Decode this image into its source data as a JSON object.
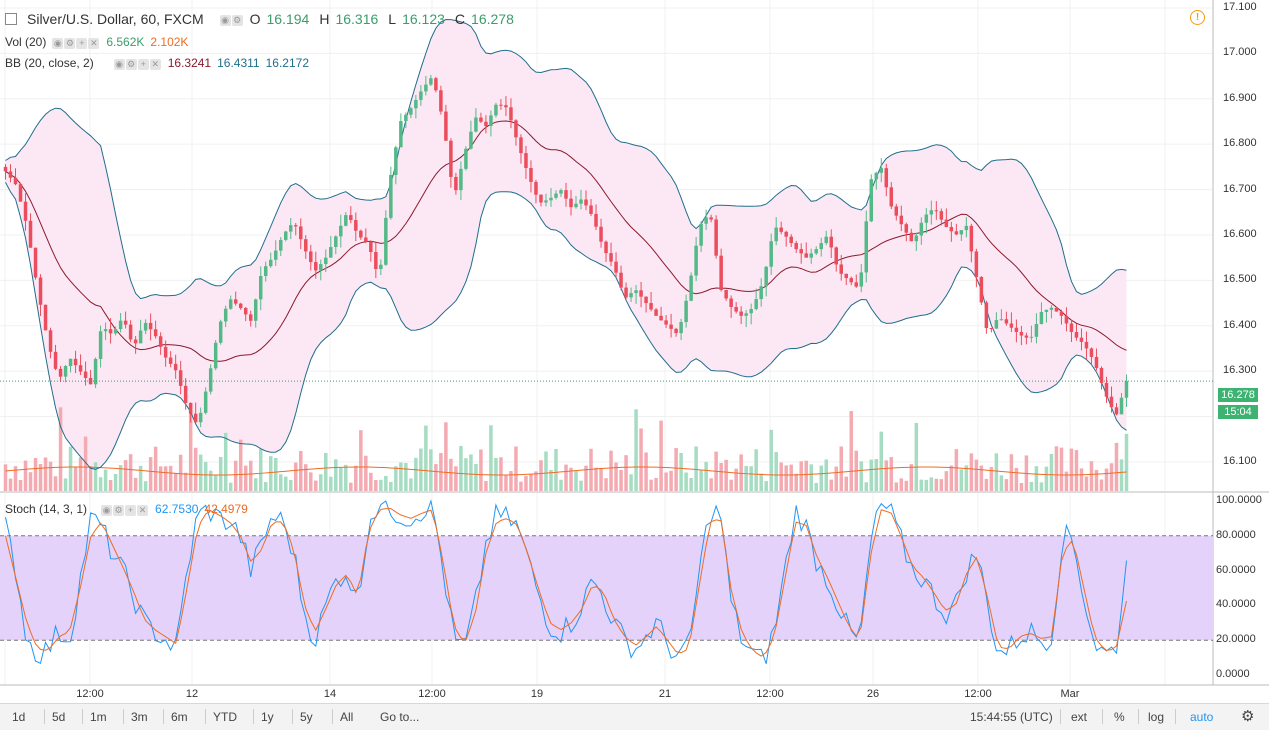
{
  "main_legend": {
    "title": "Silver/U.S. Dollar, 60, FXCM",
    "o_label": "O",
    "o": "16.194",
    "h_label": "H",
    "h": "16.316",
    "l_label": "L",
    "l": "16.123",
    "c_label": "C",
    "c": "16.278"
  },
  "vol_legend": {
    "label": "Vol (20)",
    "v1": "6.562K",
    "v2": "2.102K"
  },
  "bb_legend": {
    "label": "BB (20, close, 2)",
    "mid": "16.3241",
    "upper": "16.4311",
    "lower": "16.2172"
  },
  "stoch_legend": {
    "label": "Stoch (14, 3, 1)",
    "k": "62.7530",
    "d": "42.4979"
  },
  "price_axis": [
    "17.100",
    "17.000",
    "16.900",
    "16.800",
    "16.700",
    "16.600",
    "16.500",
    "16.400",
    "16.300",
    "16.200",
    "16.100"
  ],
  "stoch_axis": [
    "100.0000",
    "80.0000",
    "60.0000",
    "40.0000",
    "20.0000",
    "0.0000"
  ],
  "current_price": "16.278",
  "countdown": "15:04",
  "time_axis": [
    "12:00",
    "12",
    "14",
    "12:00",
    "19",
    "21",
    "12:00",
    "26",
    "12:00",
    "Mar"
  ],
  "bottom_bar": {
    "ranges": [
      "1d",
      "5d",
      "1m",
      "3m",
      "6m",
      "YTD",
      "1y",
      "5y",
      "All"
    ],
    "goto": "Go to...",
    "clock": "15:44:55 (UTC)",
    "ext": "ext",
    "percent": "%",
    "log": "log",
    "auto": "auto"
  },
  "colors": {
    "up": "#53b987",
    "down": "#eb4d5c",
    "bb_band": "#1f6e8c",
    "bb_mid": "#8b1a2b",
    "bb_fill": "#fce8f5",
    "stoch_k": "#2196f3",
    "stoch_d": "#ef6c23",
    "stoch_zone": "#e4d2fa"
  },
  "chart_data": {
    "type": "candlestick",
    "symbol": "Silver/U.S. Dollar",
    "interval": "60",
    "ylim": [
      16.08,
      17.1
    ],
    "close_path": [
      16.74,
      16.71,
      16.62,
      16.48,
      16.36,
      16.28,
      16.33,
      16.3,
      16.27,
      16.4,
      16.38,
      16.42,
      16.35,
      16.41,
      16.38,
      16.33,
      16.3,
      16.22,
      16.18,
      16.28,
      16.4,
      16.46,
      16.44,
      16.41,
      16.52,
      16.55,
      16.6,
      16.63,
      16.57,
      16.52,
      16.55,
      16.6,
      16.65,
      16.6,
      16.58,
      16.5,
      16.72,
      16.85,
      16.88,
      16.92,
      16.95,
      16.85,
      16.68,
      16.78,
      16.86,
      16.84,
      16.89,
      16.88,
      16.8,
      16.73,
      16.67,
      16.68,
      16.7,
      16.66,
      16.68,
      16.64,
      16.57,
      16.53,
      16.46,
      16.48,
      16.45,
      16.42,
      16.4,
      16.38,
      16.48,
      16.62,
      16.65,
      16.48,
      16.44,
      16.42,
      16.44,
      16.5,
      16.62,
      16.6,
      16.57,
      16.55,
      16.57,
      16.6,
      16.52,
      16.5,
      16.48,
      16.72,
      16.75,
      16.66,
      16.62,
      16.58,
      16.64,
      16.66,
      16.62,
      16.6,
      16.62,
      16.5,
      16.38,
      16.42,
      16.4,
      16.38,
      16.37,
      16.43,
      16.44,
      16.42,
      16.38,
      16.36,
      16.32,
      16.25,
      16.2,
      16.278
    ],
    "stoch_k_path": [
      85,
      60,
      20,
      12,
      15,
      25,
      20,
      55,
      90,
      85,
      70,
      60,
      45,
      30,
      25,
      20,
      15,
      60,
      92,
      95,
      90,
      88,
      80,
      60,
      75,
      92,
      88,
      70,
      35,
      20,
      40,
      55,
      60,
      40,
      90,
      98,
      95,
      92,
      90,
      95,
      98,
      60,
      20,
      15,
      40,
      75,
      92,
      90,
      85,
      65,
      45,
      28,
      25,
      30,
      40,
      55,
      45,
      30,
      20,
      15,
      22,
      30,
      18,
      10,
      15,
      60,
      95,
      92,
      40,
      20,
      12,
      8,
      25,
      60,
      95,
      85,
      65,
      55,
      40,
      25,
      18,
      75,
      98,
      92,
      75,
      60,
      55,
      45,
      35,
      40,
      60,
      70,
      40,
      12,
      15,
      22,
      25,
      20,
      22,
      80,
      78,
      45,
      18,
      12,
      15,
      62.75
    ],
    "stoch_d_path": [
      80,
      55,
      30,
      15,
      14,
      22,
      25,
      50,
      80,
      88,
      75,
      62,
      48,
      32,
      26,
      22,
      18,
      50,
      85,
      95,
      92,
      88,
      80,
      65,
      72,
      88,
      88,
      72,
      40,
      25,
      38,
      52,
      58,
      45,
      82,
      95,
      96,
      92,
      90,
      93,
      95,
      65,
      28,
      18,
      35,
      70,
      88,
      90,
      86,
      68,
      48,
      30,
      26,
      30,
      38,
      52,
      48,
      32,
      22,
      17,
      22,
      28,
      20,
      12,
      15,
      52,
      88,
      90,
      48,
      24,
      14,
      10,
      22,
      55,
      88,
      86,
      68,
      56,
      42,
      28,
      20,
      68,
      95,
      93,
      78,
      62,
      56,
      47,
      37,
      40,
      58,
      68,
      44,
      16,
      15,
      22,
      24,
      21,
      22,
      70,
      78,
      50,
      22,
      14,
      15,
      42.5
    ]
  }
}
